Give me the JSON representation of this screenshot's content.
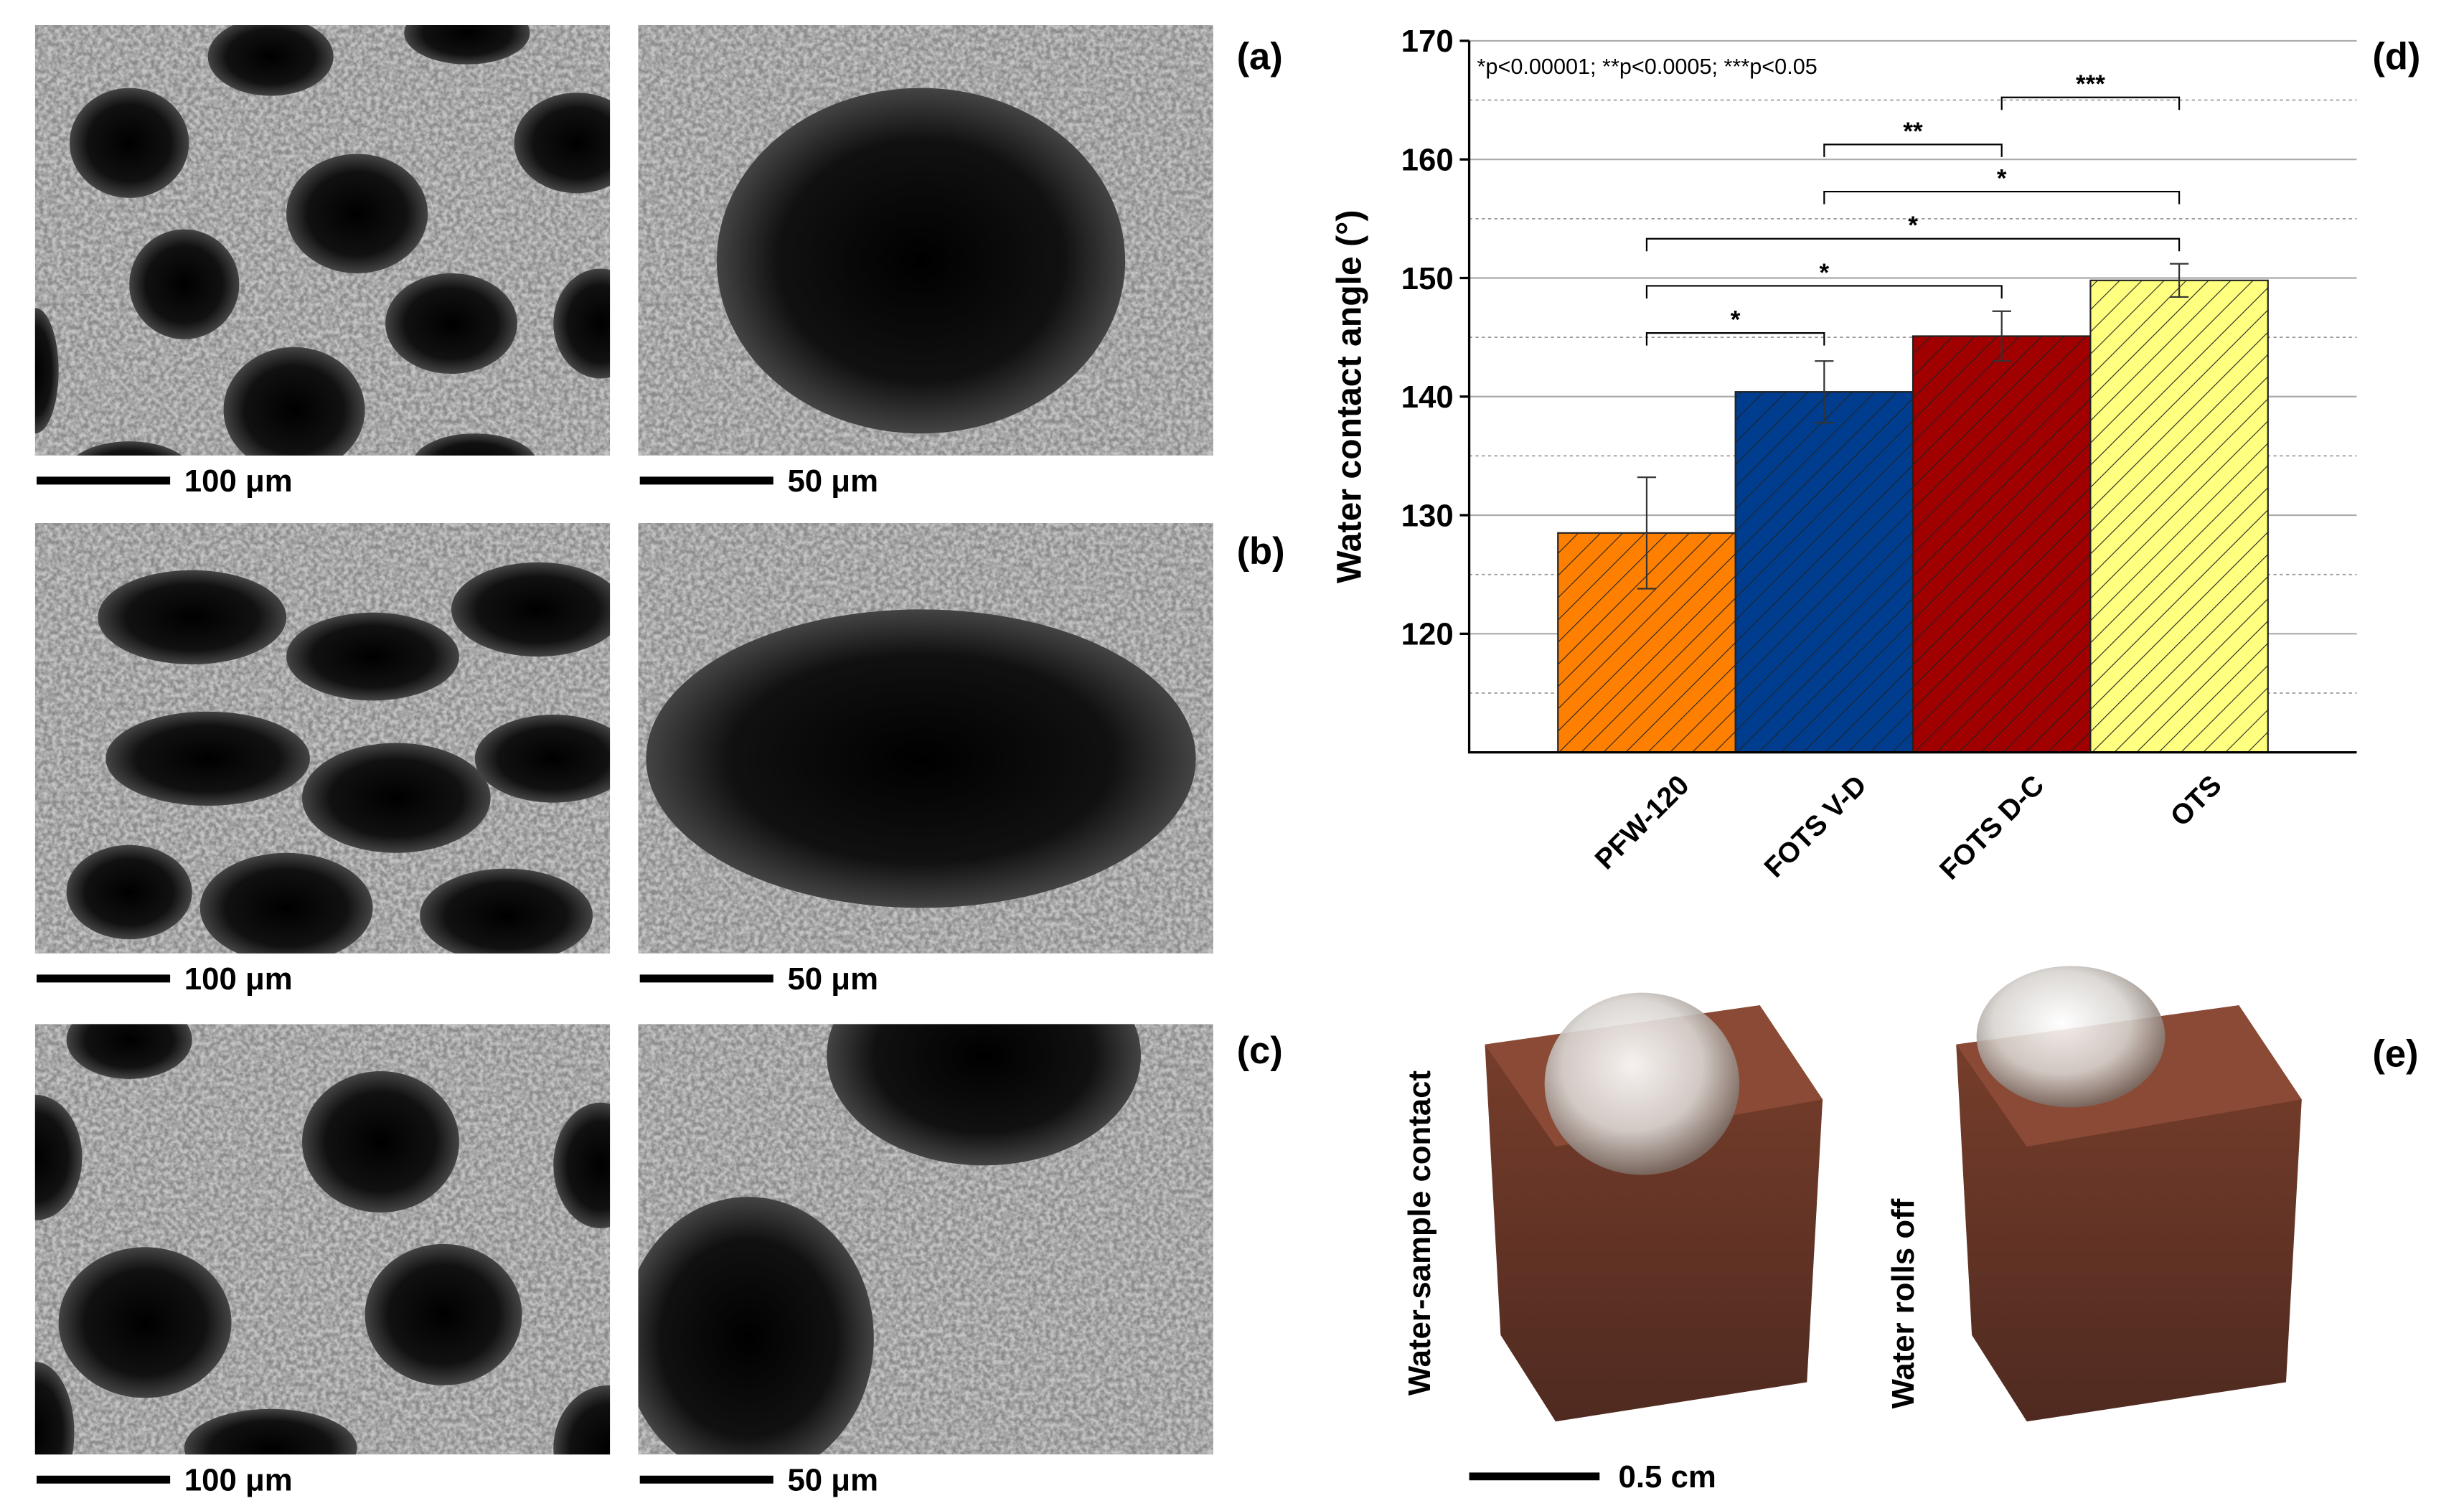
{
  "panels": [
    {
      "label": "(a)",
      "scale_bars": [
        "100 μm",
        "50 μm"
      ]
    },
    {
      "label": "(b)",
      "scale_bars": [
        "100 μm",
        "50 μm"
      ]
    },
    {
      "label": "(c)",
      "scale_bars": [
        "100 μm",
        "50 μm"
      ]
    }
  ],
  "chart_panel": {
    "label": "(d)"
  },
  "chart_data": {
    "type": "bar",
    "y_label": "Water contact angle (°)",
    "annotation": "*p<0.00001; **p<0.0005; ***p<0.05",
    "categories": [
      "PFW-120",
      "FOTS V-D",
      "FOTS D-C",
      "OTS"
    ],
    "values": [
      128.5,
      140.4,
      145.1,
      149.8
    ],
    "errors": [
      4.7,
      2.6,
      2.1,
      1.4
    ],
    "colors": [
      "#ff8000",
      "#003d8f",
      "#a00000",
      "#ffff80"
    ],
    "hatch": true,
    "ylim": [
      110,
      170
    ],
    "yticks": [
      120,
      130,
      140,
      150,
      160,
      170
    ],
    "minor_yticks": [
      115,
      125,
      135,
      145,
      155,
      165
    ],
    "grid": true,
    "significance": [
      {
        "groups": [
          0,
          1
        ],
        "label": "*"
      },
      {
        "groups": [
          0,
          2
        ],
        "label": "*"
      },
      {
        "groups": [
          0,
          3
        ],
        "label": "*"
      },
      {
        "groups": [
          1,
          3
        ],
        "label": "*"
      },
      {
        "groups": [
          1,
          2
        ],
        "label": "**"
      },
      {
        "groups": [
          2,
          3
        ],
        "label": "***"
      }
    ]
  },
  "photo_panel": {
    "label": "(e)",
    "captions": [
      "Water-sample contact",
      "Water rolls off"
    ],
    "scale_bar": "0.5 cm"
  }
}
